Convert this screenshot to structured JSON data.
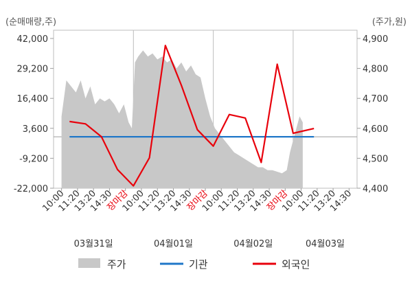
{
  "chart_data": {
    "type": "line",
    "left_axis_unit": "(순매매량,주)",
    "right_axis_unit": "(주가,원)",
    "left_ylim": [
      -22000,
      42000
    ],
    "right_ylim": [
      4400,
      4900
    ],
    "left_ticks": [
      "42,000",
      "29,200",
      "16,400",
      "3,600",
      "-9,200",
      "-22,000"
    ],
    "right_ticks": [
      "4,900",
      "4,800",
      "4,700",
      "4,600",
      "4,500",
      "4,400"
    ],
    "left_tick_values": [
      42000,
      29200,
      16400,
      3600,
      -9200,
      -22000
    ],
    "right_tick_values": [
      4900,
      4800,
      4700,
      4600,
      4500,
      4400
    ],
    "x_labels": [
      "10:00",
      "11:20",
      "13:20",
      "14:30",
      "장마감",
      "10:00",
      "11:20",
      "13:20",
      "14:30",
      "장마감",
      "10:00",
      "11:20",
      "13:20",
      "14:30",
      "장마감",
      "10:00",
      "11:20",
      "13:20",
      "14:30"
    ],
    "closing_label": "장마감",
    "dates": [
      "03월31일",
      "04월01일",
      "04월02일",
      "04월03일"
    ],
    "day_boundaries": [
      4.5,
      9.5,
      14.5
    ],
    "legend": [
      {
        "name": "주가",
        "color": "#c8c8c8",
        "kind": "area"
      },
      {
        "name": "기관",
        "color": "#1f77c8",
        "kind": "line"
      },
      {
        "name": "외국인",
        "color": "#e8000b",
        "kind": "line"
      }
    ],
    "series": [
      {
        "name": "주가",
        "color": "#c8c8c8",
        "x": [
          0,
          0.3,
          0.6,
          0.9,
          1.2,
          1.5,
          1.8,
          2.1,
          2.4,
          2.7,
          3.0,
          3.3,
          3.6,
          3.9,
          4.2,
          4.4,
          4.6,
          4.8,
          5.1,
          5.4,
          5.7,
          6.0,
          6.3,
          6.6,
          6.9,
          7.2,
          7.5,
          7.8,
          8.1,
          8.4,
          8.7,
          9.0,
          9.3,
          9.6,
          9.9,
          10.2,
          10.5,
          10.8,
          11.1,
          11.4,
          11.7,
          12.0,
          12.3,
          12.6,
          12.9,
          13.2,
          13.5,
          13.8,
          14.1,
          14.3,
          14.5,
          14.7,
          14.9,
          15.1
        ],
        "values": [
          4640,
          4760,
          4740,
          4720,
          4760,
          4700,
          4740,
          4680,
          4700,
          4690,
          4700,
          4680,
          4650,
          4680,
          4620,
          4600,
          4820,
          4840,
          4860,
          4840,
          4850,
          4830,
          4840,
          4820,
          4830,
          4800,
          4820,
          4790,
          4810,
          4780,
          4770,
          4700,
          4640,
          4600,
          4580,
          4560,
          4540,
          4520,
          4510,
          4500,
          4490,
          4480,
          4470,
          4470,
          4460,
          4460,
          4455,
          4450,
          4460,
          4520,
          4560,
          4600,
          4640,
          4620
        ]
      },
      {
        "name": "기관",
        "color": "#1f77c8",
        "x": [
          0.5,
          15.8
        ],
        "values": [
          0,
          0
        ]
      },
      {
        "name": "외국인",
        "color": "#e8000b",
        "x": [
          0.5,
          1.5,
          2.5,
          3.5,
          4.5,
          5.5,
          6.5,
          7.5,
          8.5,
          9.5,
          10.5,
          11.5,
          12.5,
          13.5,
          14.5,
          15.8
        ],
        "values": [
          6500,
          5500,
          0,
          -14000,
          -21000,
          -9000,
          39000,
          22000,
          3000,
          -4000,
          9500,
          8000,
          -11000,
          31000,
          1500,
          3500
        ]
      }
    ]
  }
}
